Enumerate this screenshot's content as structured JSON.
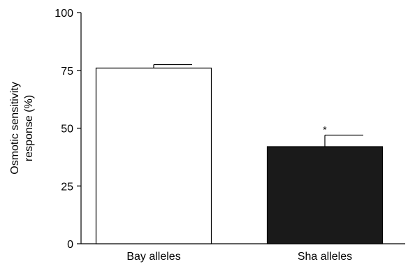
{
  "chart_data": {
    "type": "bar",
    "title": "",
    "xlabel": "",
    "ylabel_lines": [
      "Osmotic sensitivity",
      "response (%)"
    ],
    "ylim": [
      0,
      100
    ],
    "yticks": [
      0,
      25,
      50,
      75,
      100
    ],
    "categories": [
      "Bay alleles",
      "Sha alleles"
    ],
    "values": [
      76,
      42
    ],
    "errors": [
      1.5,
      5
    ],
    "bar_colors": [
      "#ffffff",
      "#1a1a1a"
    ],
    "annotations": [
      "",
      "*"
    ],
    "grid": false,
    "legend": "none"
  }
}
